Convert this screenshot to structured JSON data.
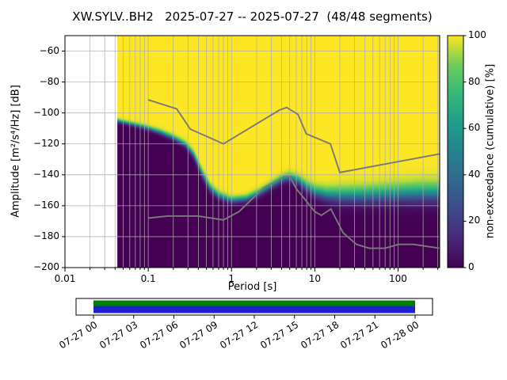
{
  "figure": {
    "background": "#ffffff"
  },
  "chart_data": {
    "type": "heatmap",
    "title": "XW.SYLV..BH2   2025-07-27 -- 2025-07-27  (48/48 segments)",
    "xlabel": "Period [s]",
    "ylabel": "Amplitude [m²/s⁴/Hz] [dB]",
    "colorbar_label": "non-exceedance (cumulative) [%]",
    "x_axis": {
      "scale": "log",
      "min": 0.01,
      "max": 316,
      "ticks": [
        0.01,
        0.1,
        1,
        10,
        100
      ],
      "tick_labels": [
        "0.01",
        "0.1",
        "1",
        "10",
        "100"
      ]
    },
    "y_axis": {
      "min": -200,
      "max": -50,
      "ticks": [
        -60,
        -80,
        -100,
        -120,
        -140,
        -160,
        -180,
        -200
      ],
      "tick_labels": [
        "−60",
        "−80",
        "−100",
        "−120",
        "−140",
        "−160",
        "−180",
        "−200"
      ]
    },
    "colorbar": {
      "min": 0,
      "max": 100,
      "ticks": [
        0,
        20,
        40,
        60,
        80,
        100
      ],
      "tick_labels": [
        "0",
        "20",
        "40",
        "60",
        "80",
        "100"
      ],
      "cmap": "viridis"
    },
    "data_period_min": 0.042,
    "distribution": {
      "note": "PPSD non-exceedance boundary: [period s, center dB, spread dB]; yellow=100% above, dark purple=0% below",
      "points": [
        [
          0.042,
          -105.0,
          1.2
        ],
        [
          0.055,
          -106.5,
          1.2
        ],
        [
          0.08,
          -108.5,
          1.3
        ],
        [
          0.1,
          -110.0,
          1.4
        ],
        [
          0.14,
          -112.5,
          1.5
        ],
        [
          0.2,
          -116.0,
          1.6
        ],
        [
          0.28,
          -120.5,
          1.8
        ],
        [
          0.35,
          -127.0,
          2.2
        ],
        [
          0.45,
          -140.0,
          2.6
        ],
        [
          0.55,
          -148.5,
          2.4
        ],
        [
          0.7,
          -153.5,
          2.2
        ],
        [
          1.0,
          -156.5,
          2.0
        ],
        [
          1.5,
          -155.5,
          2.0
        ],
        [
          2.2,
          -151.5,
          2.2
        ],
        [
          3.0,
          -147.0,
          2.2
        ],
        [
          4.0,
          -143.0,
          2.4
        ],
        [
          5.0,
          -141.5,
          2.6
        ],
        [
          6.5,
          -144.0,
          2.8
        ],
        [
          8.0,
          -148.0,
          3.2
        ],
        [
          10.0,
          -151.0,
          3.6
        ],
        [
          14.0,
          -153.0,
          4.2
        ],
        [
          20.0,
          -153.5,
          4.8
        ],
        [
          40.0,
          -153.5,
          5.2
        ],
        [
          100.0,
          -152.5,
          5.6
        ],
        [
          200.0,
          -152.0,
          6.0
        ],
        [
          316.0,
          -152.0,
          6.0
        ]
      ]
    },
    "noise_models": {
      "color": "#7a7a7a",
      "high": [
        [
          0.1,
          -91.5
        ],
        [
          0.22,
          -97.4
        ],
        [
          0.32,
          -110.5
        ],
        [
          0.8,
          -120.0
        ],
        [
          3.8,
          -98.0
        ],
        [
          4.6,
          -96.5
        ],
        [
          6.3,
          -101.0
        ],
        [
          7.9,
          -113.5
        ],
        [
          15.4,
          -120.0
        ],
        [
          20.0,
          -138.5
        ],
        [
          316.0,
          -126.5
        ]
      ],
      "low": [
        [
          0.1,
          -168.0
        ],
        [
          0.17,
          -166.7
        ],
        [
          0.4,
          -166.7
        ],
        [
          0.8,
          -169.2
        ],
        [
          1.24,
          -163.7
        ],
        [
          2.4,
          -148.6
        ],
        [
          4.3,
          -141.1
        ],
        [
          5.0,
          -141.1
        ],
        [
          6.0,
          -149.0
        ],
        [
          10.0,
          -163.8
        ],
        [
          12.0,
          -166.2
        ],
        [
          15.6,
          -162.1
        ],
        [
          21.9,
          -177.5
        ],
        [
          31.6,
          -185.0
        ],
        [
          45.0,
          -187.5
        ],
        [
          70.0,
          -187.5
        ],
        [
          101.0,
          -185.0
        ],
        [
          154.0,
          -185.0
        ],
        [
          316.0,
          -187.5
        ]
      ]
    },
    "viridis_stops": [
      [
        0.0,
        68,
        1,
        84
      ],
      [
        0.125,
        72,
        40,
        120
      ],
      [
        0.25,
        62,
        73,
        137
      ],
      [
        0.375,
        49,
        104,
        142
      ],
      [
        0.5,
        38,
        130,
        142
      ],
      [
        0.625,
        31,
        158,
        137
      ],
      [
        0.75,
        53,
        183,
        121
      ],
      [
        0.875,
        109,
        205,
        89
      ],
      [
        1.0,
        253,
        231,
        37
      ]
    ],
    "grid_color": "#adadad"
  },
  "timeline": {
    "tick_labels": [
      "07-27 00",
      "07-27 03",
      "07-27 06",
      "07-27 09",
      "07-27 12",
      "07-27 15",
      "07-27 18",
      "07-27 21",
      "07-28 00"
    ],
    "colors": {
      "green": "#008000",
      "blue": "#2020d0"
    }
  }
}
